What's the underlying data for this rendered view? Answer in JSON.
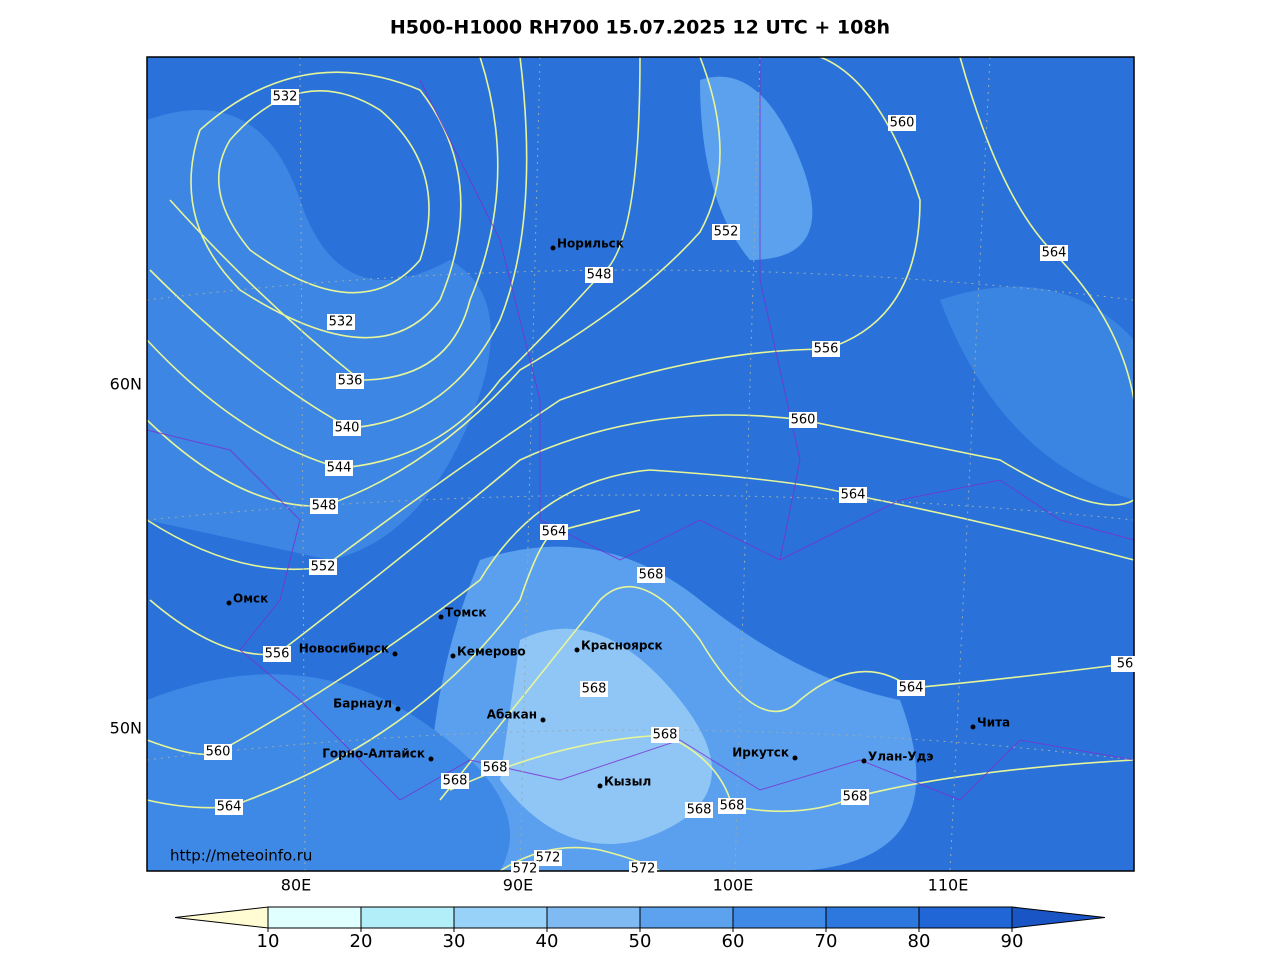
{
  "title": "H500-H1000 RH700 15.07.2025 12 UTC + 108h",
  "url": "http://meteoinfo.ru",
  "lat_labels": [
    "60N",
    "50N"
  ],
  "lon_labels": [
    "80E",
    "90E",
    "100E",
    "110E"
  ],
  "cities": [
    "Норильск",
    "Томск",
    "Омск",
    "Новосибирск",
    "Кемерово",
    "Красноярск",
    "Барнаул",
    "Абакан",
    "Горно-Алтайск",
    "Кызыл",
    "Иркутск",
    "Улан-Удэ",
    "Чита"
  ],
  "contour_labels": [
    532,
    532,
    536,
    540,
    544,
    548,
    552,
    556,
    560,
    564,
    548,
    552,
    556,
    560,
    564,
    564,
    568,
    568,
    568,
    568,
    568,
    568,
    568,
    568,
    564,
    564,
    560,
    572,
    572,
    572,
    56
  ],
  "colorbar": {
    "ticks": [
      10,
      20,
      30,
      40,
      50,
      60,
      70,
      80,
      90
    ],
    "colors": [
      "#fffbd2",
      "#e0ffff",
      "#b2eef8",
      "#98d2f8",
      "#7fbaf2",
      "#5ca2ee",
      "#3f8ae6",
      "#2c78de",
      "#2066d6",
      "#1a55c6"
    ]
  }
}
